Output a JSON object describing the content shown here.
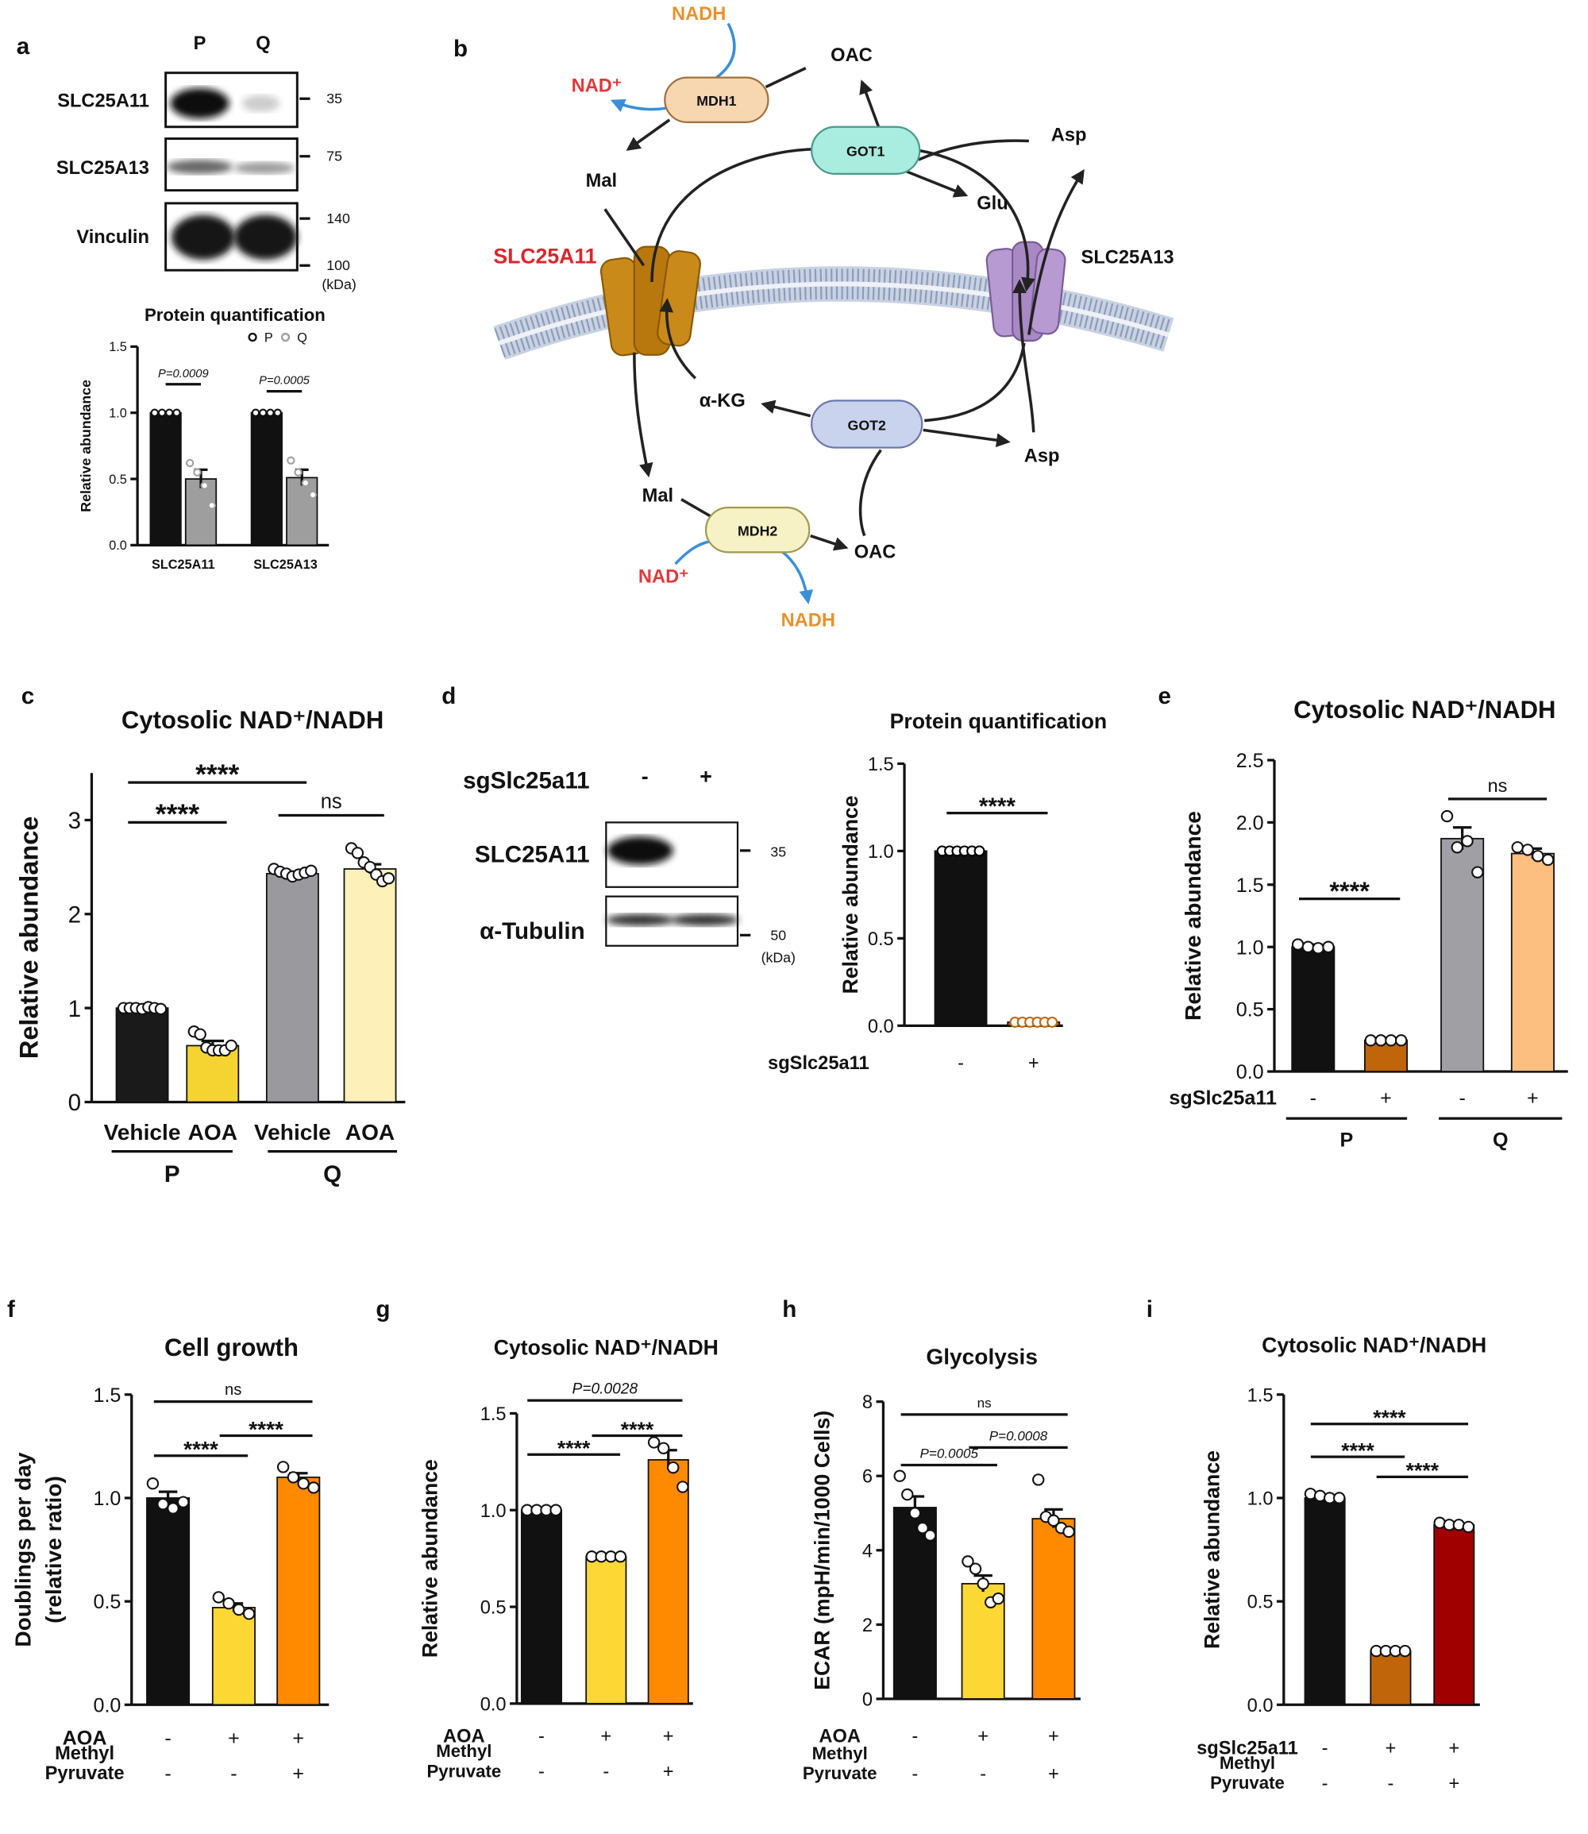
{
  "panel_labels": [
    "a",
    "b",
    "c",
    "d",
    "e",
    "f",
    "g",
    "h",
    "i"
  ],
  "blots": {
    "a": {
      "columns": [
        "P",
        "Q"
      ],
      "rows": [
        "SLC25A11",
        "SLC25A13",
        "Vinculin"
      ],
      "markers": [
        "35",
        "75",
        "140",
        "100",
        "(kDa)"
      ]
    },
    "d": {
      "condition": "sgSlc25a11",
      "columns": [
        "-",
        "+"
      ],
      "rows": [
        "SLC25A11",
        "α-Tubulin"
      ],
      "markers": [
        "35",
        "50",
        "(kDa)"
      ]
    }
  },
  "diagram": {
    "nodes": [
      {
        "label": "NADH"
      },
      {
        "label": "NAD⁺"
      },
      {
        "label": "MDH1"
      },
      {
        "label": "OAC"
      },
      {
        "label": "GOT1"
      },
      {
        "label": "Asp"
      },
      {
        "label": "Mal"
      },
      {
        "label": "Glu"
      },
      {
        "label": "SLC25A11"
      },
      {
        "label": "SLC25A13"
      },
      {
        "label": "α-KG"
      },
      {
        "label": "GOT2"
      },
      {
        "label": "Asp"
      },
      {
        "label": "Mal"
      },
      {
        "label": "MDH2"
      },
      {
        "label": "OAC"
      },
      {
        "label": "NAD⁺"
      },
      {
        "label": "NADH"
      }
    ]
  },
  "chart_data": [
    {
      "type": "bar",
      "title": "Protein quantification",
      "ylabel": "Relative abundance",
      "categories": [
        "SLC25A11",
        "SLC25A13"
      ],
      "series": [
        {
          "name": "P",
          "color": "#111111",
          "values": [
            1.0,
            1.0
          ],
          "errors": [
            0,
            0
          ],
          "points": [
            [
              1,
              1,
              1,
              1
            ],
            [
              1,
              1,
              1,
              1
            ]
          ]
        },
        {
          "name": "Q",
          "color": "#9e9e9e",
          "values": [
            0.5,
            0.51
          ],
          "errors": [
            0.07,
            0.06
          ],
          "points": [
            [
              0.62,
              0.55,
              0.45,
              0.3
            ],
            [
              0.64,
              0.55,
              0.47,
              0.38
            ]
          ]
        }
      ],
      "ylim": [
        0,
        1.5
      ],
      "yticks": [
        {
          "value": 0,
          "label": "0.0"
        },
        {
          "value": 0.5,
          "label": "0.5"
        },
        {
          "value": 1,
          "label": "1.0"
        },
        {
          "value": 1.5,
          "label": "1.5"
        }
      ],
      "annotations": [
        "P=0.0009",
        "P=0.0005"
      ],
      "legend": "top"
    },
    {
      "type": "bar",
      "title": "Cytosolic NAD⁺/NADH",
      "ylabel": "Relative abundance",
      "categories": [
        "Vehicle",
        "AOA",
        "Vehicle",
        "AOA"
      ],
      "groups": [
        "P",
        "Q"
      ],
      "values": [
        1.0,
        0.6,
        2.43,
        2.48
      ],
      "colors": [
        "#1a1a1a",
        "#f5d432",
        "#9a9a9e",
        "#fdf0b8"
      ],
      "errors": [
        0.01,
        0.05,
        0.02,
        0.05
      ],
      "points": [
        [
          1.0,
          1.0,
          1.0,
          0.99,
          1.01,
          1.0,
          0.99
        ],
        [
          0.75,
          0.72,
          0.58,
          0.55,
          0.55,
          0.55,
          0.6
        ],
        [
          2.48,
          2.45,
          2.43,
          2.4,
          2.42,
          2.44,
          2.46
        ],
        [
          2.7,
          2.65,
          2.55,
          2.5,
          2.42,
          2.35,
          2.38
        ]
      ],
      "ylim": [
        0,
        3.5
      ],
      "yticks": [
        0,
        1,
        2,
        3
      ],
      "annotations": [
        "****",
        "****",
        "ns"
      ]
    },
    {
      "type": "bar",
      "title": "Protein quantification",
      "ylabel": "Relative abundance",
      "conditions": [
        {
          "name": "sgSlc25a11",
          "values": [
            "-",
            "+"
          ]
        }
      ],
      "values": [
        1.0,
        0.02
      ],
      "colors": [
        "#111111",
        "#c0650a"
      ],
      "errors": [
        0,
        0.005
      ],
      "points": [
        [
          1,
          1,
          1,
          1,
          1,
          1
        ],
        [
          0.02,
          0.02,
          0.02,
          0.02,
          0.02,
          0.02
        ]
      ],
      "ylim": [
        0,
        1.5
      ],
      "yticks": [
        {
          "value": 0,
          "label": "0.0"
        },
        {
          "value": 0.5,
          "label": "0.5"
        },
        {
          "value": 1,
          "label": "1.0"
        },
        {
          "value": 1.5,
          "label": "1.5"
        }
      ],
      "annotations": [
        "****"
      ]
    },
    {
      "type": "bar",
      "title": "Cytosolic NAD⁺/NADH",
      "ylabel": "Relative abundance",
      "conditions": [
        {
          "name": "sgSlc25a11",
          "values": [
            "-",
            "+",
            "-",
            "+"
          ]
        }
      ],
      "groups": [
        "P",
        "Q"
      ],
      "values": [
        1.0,
        0.25,
        1.87,
        1.75
      ],
      "colors": [
        "#111111",
        "#c0650a",
        "#a0a0a4",
        "#fdbf80"
      ],
      "errors": [
        0.02,
        0,
        0.09,
        0.04
      ],
      "points": [
        [
          1.02,
          1.0,
          0.99,
          1.0
        ],
        [
          0.25,
          0.25,
          0.25,
          0.25
        ],
        [
          2.05,
          1.8,
          1.85,
          1.6
        ],
        [
          1.8,
          1.78,
          1.73,
          1.7
        ]
      ],
      "ylim": [
        0,
        2.5
      ],
      "yticks": [
        {
          "value": 0,
          "label": "0.0"
        },
        {
          "value": 0.5,
          "label": "0.5"
        },
        {
          "value": 1,
          "label": "1.0"
        },
        {
          "value": 1.5,
          "label": "1.5"
        },
        {
          "value": 2,
          "label": "2.0"
        },
        {
          "value": 2.5,
          "label": "2.5"
        }
      ],
      "annotations": [
        "****",
        "ns"
      ]
    },
    {
      "type": "bar",
      "title": "Cell growth",
      "ylabel": [
        "Doublings per day",
        "(relative ratio)"
      ],
      "conditions": [
        {
          "name": "AOA",
          "values": [
            "-",
            "+",
            "+"
          ]
        },
        {
          "name": [
            "Methyl",
            "Pyruvate"
          ],
          "values": [
            "-",
            "-",
            "+"
          ]
        }
      ],
      "values": [
        1.0,
        0.47,
        1.1
      ],
      "colors": [
        "#111111",
        "#fdd835",
        "#ff8a00"
      ],
      "errors": [
        0.03,
        0.02,
        0.02
      ],
      "points": [
        [
          1.07,
          0.97,
          0.95,
          0.98
        ],
        [
          0.52,
          0.49,
          0.46,
          0.44
        ],
        [
          1.15,
          1.1,
          1.07,
          1.05
        ]
      ],
      "ylim": [
        0,
        1.5
      ],
      "yticks": [
        {
          "value": 0,
          "label": "0.0"
        },
        {
          "value": 0.5,
          "label": "0.5"
        },
        {
          "value": 1,
          "label": "1.0"
        },
        {
          "value": 1.5,
          "label": "1.5"
        }
      ],
      "annotations": [
        "ns",
        "****",
        "****"
      ]
    },
    {
      "type": "bar",
      "title": "Cytosolic NAD⁺/NADH",
      "ylabel": "Relative abundance",
      "conditions": [
        {
          "name": "AOA",
          "values": [
            "-",
            "+",
            "+"
          ]
        },
        {
          "name": [
            "Methyl",
            "Pyruvate"
          ],
          "values": [
            "-",
            "-",
            "+"
          ]
        }
      ],
      "values": [
        1.0,
        0.76,
        1.26
      ],
      "colors": [
        "#111111",
        "#fdd835",
        "#ff8a00"
      ],
      "errors": [
        0,
        0.005,
        0.05
      ],
      "points": [
        [
          1,
          1,
          1,
          1
        ],
        [
          0.76,
          0.76,
          0.76,
          0.76
        ],
        [
          1.35,
          1.32,
          1.22,
          1.12
        ]
      ],
      "ylim": [
        0,
        1.5
      ],
      "yticks": [
        {
          "value": 0,
          "label": "0.0"
        },
        {
          "value": 0.5,
          "label": "0.5"
        },
        {
          "value": 1,
          "label": "1.0"
        },
        {
          "value": 1.5,
          "label": "1.5"
        }
      ],
      "annotations": [
        "P=0.0028",
        "****",
        "****"
      ]
    },
    {
      "type": "bar",
      "title": "Glycolysis",
      "ylabel": "ECAR (mpH/min/1000 Cells)",
      "conditions": [
        {
          "name": "AOA",
          "values": [
            "-",
            "+",
            "+"
          ]
        },
        {
          "name": [
            "Methyl",
            "Pyruvate"
          ],
          "values": [
            "-",
            "-",
            "+"
          ]
        }
      ],
      "values": [
        5.15,
        3.1,
        4.85
      ],
      "colors": [
        "#111111",
        "#fdd835",
        "#ff8a00"
      ],
      "errors": [
        0.3,
        0.22,
        0.25
      ],
      "points": [
        [
          6.0,
          5.5,
          5.0,
          4.6,
          4.4
        ],
        [
          3.7,
          3.5,
          3.1,
          2.6,
          2.7
        ],
        [
          5.9,
          4.9,
          4.8,
          4.6,
          4.5
        ]
      ],
      "ylim": [
        0,
        8
      ],
      "yticks": [
        0,
        2,
        4,
        6,
        8
      ],
      "annotations": [
        "ns",
        "P=0.0005",
        "P=0.0008"
      ]
    },
    {
      "type": "bar",
      "title": "Cytosolic NAD⁺/NADH",
      "ylabel": "Relative abundance",
      "conditions": [
        {
          "name": "sgSlc25a11",
          "values": [
            "-",
            "+",
            "+"
          ]
        },
        {
          "name": [
            "Methyl",
            "Pyruvate"
          ],
          "values": [
            "-",
            "-",
            "+"
          ]
        }
      ],
      "values": [
        1.0,
        0.26,
        0.87
      ],
      "colors": [
        "#111111",
        "#c0650a",
        "#a00000"
      ],
      "errors": [
        0.01,
        0.005,
        0.01
      ],
      "points": [
        [
          1.02,
          1.01,
          1.0,
          1.0
        ],
        [
          0.26,
          0.26,
          0.26,
          0.26
        ],
        [
          0.88,
          0.87,
          0.87,
          0.86
        ]
      ],
      "ylim": [
        0,
        1.5
      ],
      "yticks": [
        {
          "value": 0,
          "label": "0.0"
        },
        {
          "value": 0.5,
          "label": "0.5"
        },
        {
          "value": 1,
          "label": "1.0"
        },
        {
          "value": 1.5,
          "label": "1.5"
        }
      ],
      "annotations": [
        "****",
        "****",
        "****"
      ]
    }
  ]
}
